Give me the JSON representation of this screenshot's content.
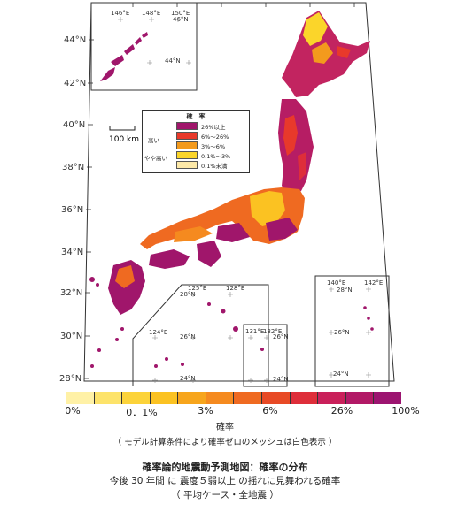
{
  "map": {
    "lat_labels": [
      "44°N",
      "42°N",
      "40°N",
      "38°N",
      "36°N",
      "34°N",
      "32°N",
      "30°N",
      "28°N"
    ],
    "inset_north_labels": [
      "146°E",
      "148°E",
      "150°E",
      "46°N",
      "44°N"
    ],
    "inset_south_labels": [
      "125°E",
      "128°E",
      "28°N",
      "124°E",
      "26°N",
      "24°N"
    ],
    "inset_east_labels": [
      "131°E",
      "132°E",
      "26°N",
      "24°N"
    ],
    "inset_far_labels": [
      "140°E",
      "142°E",
      "28°N",
      "26°N",
      "24°N"
    ],
    "scale_label": "100 km"
  },
  "legend": {
    "title": "確　率",
    "high_label": "高い",
    "medium_label": "やや高い",
    "items": [
      {
        "label": "26%以上",
        "color": "#a0166b"
      },
      {
        "label": "6%～26%",
        "color": "#e8392b"
      },
      {
        "label": "3%～6%",
        "color": "#f39a1d"
      },
      {
        "label": "0.1%～3%",
        "color": "#fbd52a"
      },
      {
        "label": "0.1%未満",
        "color": "#fde9a8"
      }
    ]
  },
  "colorbar": {
    "colors": [
      "#fff1a6",
      "#fde36a",
      "#fcd33a",
      "#fbc222",
      "#f7a51c",
      "#f58a1f",
      "#ef6a21",
      "#e84a26",
      "#de2e3a",
      "#c9205a",
      "#b21966",
      "#9c1470"
    ],
    "ticks": [
      "0%",
      "0．1%",
      "3%",
      "6%",
      "26%",
      "100%"
    ],
    "title": "確率"
  },
  "notes": {
    "mesh_note": "（ モデル計算条件により確率ゼロのメッシュは白色表示 ）",
    "main_title": "確率論的地震動予測地図：確率の分布",
    "subtitle": "今後 30 年間 に 震度５弱以上 の揺れに見舞われる確率",
    "subtitle2": "（ 平均ケース・全地震 ）"
  }
}
